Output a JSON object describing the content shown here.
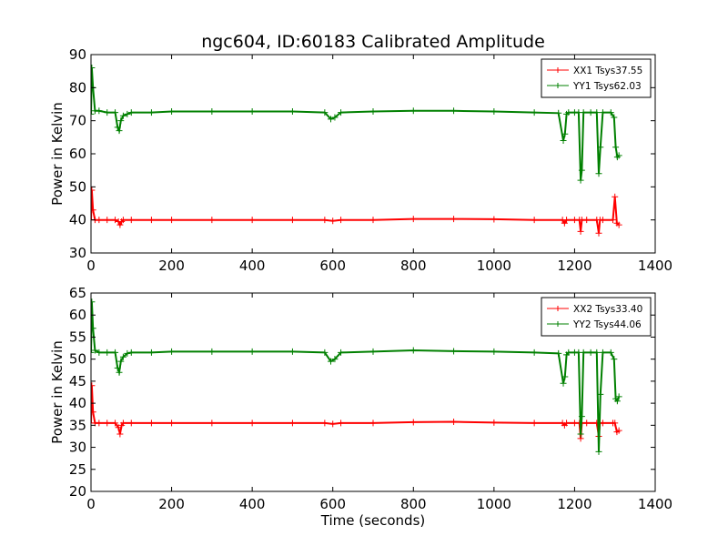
{
  "title": "ngc604, ID:60183 Calibrated Amplitude",
  "chart_data": [
    {
      "type": "line",
      "ylabel": "Power in Kelvin",
      "xlabel": "",
      "xlim": [
        0,
        1400
      ],
      "ylim": [
        30,
        90
      ],
      "xticks": [
        0,
        200,
        400,
        600,
        800,
        1000,
        1200,
        1400
      ],
      "yticks": [
        30,
        40,
        50,
        60,
        70,
        80,
        90
      ],
      "grid": false,
      "legend_position": "top-right",
      "series": [
        {
          "name": "XX1 Tsys37.55",
          "color": "#ff0000",
          "x": [
            0,
            2,
            5,
            10,
            20,
            40,
            60,
            68,
            72,
            76,
            80,
            100,
            150,
            200,
            300,
            400,
            500,
            580,
            600,
            620,
            700,
            800,
            900,
            1000,
            1100,
            1170,
            1175,
            1180,
            1200,
            1212,
            1215,
            1218,
            1230,
            1255,
            1260,
            1263,
            1270,
            1295,
            1300,
            1305,
            1310
          ],
          "y": [
            40,
            49,
            43,
            40,
            40,
            40,
            40,
            39.5,
            38.5,
            39.5,
            40,
            40,
            40,
            40,
            40,
            40,
            40,
            40,
            39.7,
            40,
            40,
            40.3,
            40.3,
            40.2,
            40,
            40,
            39,
            40,
            40,
            40,
            36.5,
            40,
            40,
            40,
            36,
            40,
            40,
            40,
            47,
            39,
            38.5
          ]
        },
        {
          "name": "YY1 Tsys62.03",
          "color": "#008000",
          "x": [
            0,
            2,
            5,
            10,
            20,
            40,
            60,
            66,
            70,
            74,
            80,
            90,
            100,
            150,
            200,
            300,
            400,
            500,
            580,
            595,
            605,
            620,
            700,
            800,
            900,
            1000,
            1100,
            1160,
            1172,
            1176,
            1180,
            1185,
            1200,
            1210,
            1215,
            1218,
            1222,
            1240,
            1255,
            1260,
            1264,
            1270,
            1290,
            1298,
            1302,
            1306,
            1310
          ],
          "y": [
            72,
            86,
            80,
            73,
            73,
            72.5,
            72.5,
            68,
            67,
            70,
            71.5,
            72,
            72.5,
            72.5,
            72.8,
            72.8,
            72.8,
            72.8,
            72.5,
            70.5,
            71,
            72.5,
            72.8,
            73,
            73,
            72.8,
            72.5,
            72.3,
            64,
            66,
            72,
            72.5,
            72.5,
            72.5,
            52,
            55,
            72.5,
            72.5,
            72.5,
            54,
            62,
            72.5,
            72.5,
            71,
            62,
            59,
            59.5
          ]
        }
      ]
    },
    {
      "type": "line",
      "ylabel": "Power in Kelvin",
      "xlabel": "Time (seconds)",
      "xlim": [
        0,
        1400
      ],
      "ylim": [
        20,
        65
      ],
      "xticks": [
        0,
        200,
        400,
        600,
        800,
        1000,
        1200,
        1400
      ],
      "yticks": [
        20,
        25,
        30,
        35,
        40,
        45,
        50,
        55,
        60,
        65
      ],
      "grid": false,
      "legend_position": "top-right",
      "series": [
        {
          "name": "XX2 Tsys33.40",
          "color": "#ff0000",
          "x": [
            0,
            2,
            5,
            10,
            20,
            40,
            60,
            68,
            72,
            76,
            80,
            100,
            150,
            200,
            300,
            400,
            500,
            580,
            600,
            620,
            700,
            800,
            900,
            1000,
            1100,
            1170,
            1175,
            1180,
            1200,
            1212,
            1215,
            1218,
            1230,
            1255,
            1260,
            1263,
            1270,
            1295,
            1300,
            1305,
            1310
          ],
          "y": [
            35.5,
            44,
            38,
            35.5,
            35.5,
            35.5,
            35.5,
            34.5,
            33,
            35,
            35.5,
            35.5,
            35.5,
            35.5,
            35.5,
            35.5,
            35.5,
            35.5,
            35.3,
            35.5,
            35.5,
            35.7,
            35.8,
            35.6,
            35.5,
            35.5,
            35,
            35.5,
            35.5,
            35.5,
            32,
            35.5,
            35.5,
            35.5,
            32.5,
            35.5,
            35.5,
            35.5,
            35.5,
            33.5,
            33.8
          ]
        },
        {
          "name": "YY2 Tsys44.06",
          "color": "#008000",
          "x": [
            0,
            2,
            5,
            10,
            20,
            40,
            60,
            66,
            70,
            74,
            80,
            90,
            100,
            150,
            200,
            300,
            400,
            500,
            580,
            595,
            605,
            620,
            700,
            800,
            900,
            1000,
            1100,
            1160,
            1172,
            1176,
            1180,
            1185,
            1200,
            1210,
            1215,
            1218,
            1222,
            1240,
            1255,
            1260,
            1264,
            1270,
            1290,
            1298,
            1302,
            1306,
            1310
          ],
          "y": [
            51.5,
            63,
            57,
            52,
            51.5,
            51.5,
            51.5,
            48,
            47,
            49.5,
            50.5,
            51.3,
            51.5,
            51.5,
            51.7,
            51.7,
            51.7,
            51.7,
            51.5,
            49.5,
            50,
            51.5,
            51.7,
            52,
            51.8,
            51.7,
            51.5,
            51.3,
            44.5,
            46,
            51,
            51.5,
            51.5,
            51.5,
            33,
            37,
            51.5,
            51.5,
            51.5,
            29,
            42,
            51.5,
            51.5,
            50,
            41,
            40.5,
            41.5
          ]
        }
      ]
    }
  ]
}
